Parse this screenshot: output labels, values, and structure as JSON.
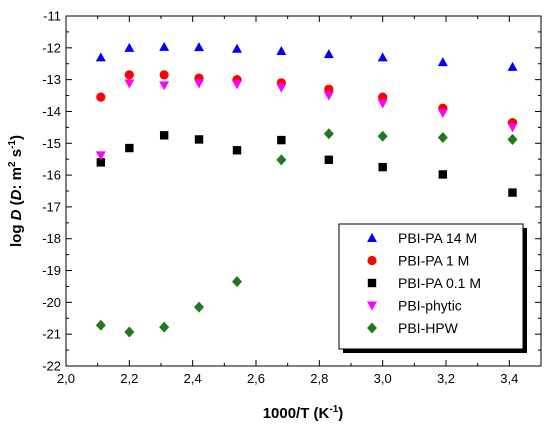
{
  "chart_data": {
    "type": "scatter",
    "xlabel": {
      "main": "1000/T (K",
      "sup": "-1",
      "end": ")"
    },
    "ylabel": {
      "prefix": "log ",
      "italic1": "D",
      "open": " (",
      "italic2": "D",
      "units": ": m",
      "sup1": "2",
      "mid": " s",
      "sup2": "-1",
      "close": ")"
    },
    "xlim": [
      2.0,
      3.5
    ],
    "ylim": [
      -22,
      -11
    ],
    "xticks": [
      "2,0",
      "2,2",
      "2,4",
      "2,6",
      "2,8",
      "3,0",
      "3,2",
      "3,4"
    ],
    "yticks": [
      "-11",
      "-12",
      "-13",
      "-14",
      "-15",
      "-16",
      "-17",
      "-18",
      "-19",
      "-20",
      "-21",
      "-22"
    ],
    "grid": false,
    "legend_position": "bottom-right",
    "series": [
      {
        "name": "PBI-PA 14 M",
        "marker": "triangle-up",
        "color": "#0000ff",
        "points": [
          [
            2.11,
            -12.3
          ],
          [
            2.2,
            -12.0
          ],
          [
            2.31,
            -11.97
          ],
          [
            2.42,
            -11.98
          ],
          [
            2.54,
            -12.03
          ],
          [
            2.68,
            -12.1
          ],
          [
            2.83,
            -12.2
          ],
          [
            3.0,
            -12.3
          ],
          [
            3.19,
            -12.45
          ],
          [
            3.41,
            -12.6
          ]
        ]
      },
      {
        "name": "PBI-PA 1 M",
        "marker": "circle",
        "color": "#ff0000",
        "points": [
          [
            2.11,
            -13.55
          ],
          [
            2.2,
            -12.85
          ],
          [
            2.31,
            -12.85
          ],
          [
            2.42,
            -12.95
          ],
          [
            2.54,
            -13.0
          ],
          [
            2.68,
            -13.1
          ],
          [
            2.83,
            -13.3
          ],
          [
            3.0,
            -13.55
          ],
          [
            3.19,
            -13.9
          ],
          [
            3.41,
            -14.35
          ]
        ]
      },
      {
        "name": "PBI-PA 0.1 M",
        "marker": "square",
        "color": "#000000",
        "points": [
          [
            2.11,
            -15.6
          ],
          [
            2.2,
            -15.15
          ],
          [
            2.31,
            -14.75
          ],
          [
            2.42,
            -14.88
          ],
          [
            2.54,
            -15.22
          ],
          [
            2.68,
            -14.9
          ],
          [
            2.83,
            -15.52
          ],
          [
            3.0,
            -15.75
          ],
          [
            3.19,
            -15.98
          ],
          [
            3.41,
            -16.55
          ]
        ]
      },
      {
        "name": "PBI-phytic",
        "marker": "triangle-down",
        "color": "#ff00ff",
        "points": [
          [
            2.11,
            -15.38
          ],
          [
            2.2,
            -13.12
          ],
          [
            2.31,
            -13.18
          ],
          [
            2.42,
            -13.12
          ],
          [
            2.54,
            -13.15
          ],
          [
            2.68,
            -13.25
          ],
          [
            2.83,
            -13.5
          ],
          [
            3.0,
            -13.75
          ],
          [
            3.19,
            -14.05
          ],
          [
            3.41,
            -14.5
          ]
        ]
      },
      {
        "name": "PBI-HPW",
        "marker": "diamond",
        "color": "#1f7a1f",
        "points": [
          [
            2.11,
            -20.72
          ],
          [
            2.2,
            -20.93
          ],
          [
            2.31,
            -20.78
          ],
          [
            2.42,
            -20.15
          ],
          [
            2.54,
            -19.35
          ],
          [
            2.68,
            -15.52
          ],
          [
            2.83,
            -14.7
          ],
          [
            3.0,
            -14.78
          ],
          [
            3.19,
            -14.82
          ],
          [
            3.41,
            -14.88
          ]
        ]
      }
    ]
  }
}
